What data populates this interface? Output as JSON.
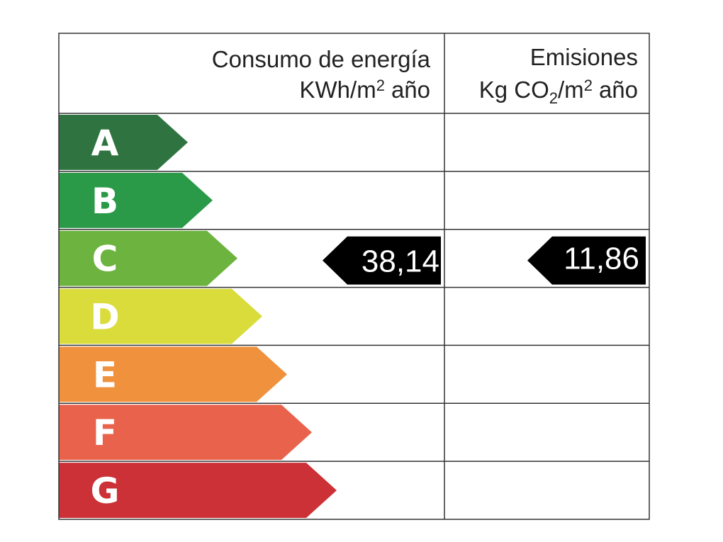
{
  "header": {
    "consumption_title": "Consumo de energía",
    "consumption_unit": [
      "KWh/m",
      "2",
      "año"
    ],
    "emissions_title": "Emisiones",
    "emissions_unit": [
      "Kg CO",
      "2",
      "/m",
      "2",
      "año"
    ]
  },
  "ratings": [
    {
      "letter": "A",
      "color": "#2f7440"
    },
    {
      "letter": "B",
      "color": "#2a9a48"
    },
    {
      "letter": "C",
      "color": "#6cb33f"
    },
    {
      "letter": "D",
      "color": "#d9dc3a"
    },
    {
      "letter": "E",
      "color": "#f0913e"
    },
    {
      "letter": "F",
      "color": "#e9624b"
    },
    {
      "letter": "G",
      "color": "#cb3136"
    }
  ],
  "result": {
    "rating": "C",
    "consumption": "38,14",
    "emissions": "11,86"
  }
}
